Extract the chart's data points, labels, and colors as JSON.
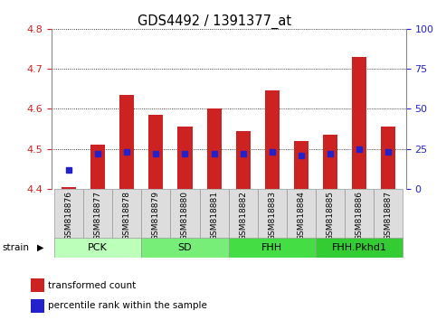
{
  "title": "GDS4492 / 1391377_at",
  "samples": [
    "GSM818876",
    "GSM818877",
    "GSM818878",
    "GSM818879",
    "GSM818880",
    "GSM818881",
    "GSM818882",
    "GSM818883",
    "GSM818884",
    "GSM818885",
    "GSM818886",
    "GSM818887"
  ],
  "red_values": [
    4.405,
    4.51,
    4.635,
    4.585,
    4.555,
    4.6,
    4.545,
    4.645,
    4.52,
    4.535,
    4.73,
    4.555
  ],
  "blue_values_pct": [
    12,
    22,
    23,
    22,
    22,
    22,
    22,
    23,
    21,
    22,
    25,
    23
  ],
  "ylim_left": [
    4.4,
    4.8
  ],
  "ylim_right": [
    0,
    100
  ],
  "yticks_left": [
    4.4,
    4.5,
    4.6,
    4.7,
    4.8
  ],
  "yticks_right": [
    0,
    25,
    50,
    75,
    100
  ],
  "bar_bottom": 4.4,
  "red_color": "#cc2222",
  "blue_color": "#2222cc",
  "groups": [
    {
      "label": "PCK",
      "start": 0,
      "end": 3,
      "color": "#bbffbb"
    },
    {
      "label": "SD",
      "start": 3,
      "end": 6,
      "color": "#77ee77"
    },
    {
      "label": "FHH",
      "start": 6,
      "end": 9,
      "color": "#44dd44"
    },
    {
      "label": "FHH.Pkhd1",
      "start": 9,
      "end": 12,
      "color": "#33cc33"
    }
  ],
  "legend_red": "transformed count",
  "legend_blue": "percentile rank within the sample",
  "strain_label": "strain",
  "tick_color_left": "#cc2222",
  "tick_color_right": "#2222cc",
  "bar_width": 0.5,
  "grid_linestyle": ":"
}
